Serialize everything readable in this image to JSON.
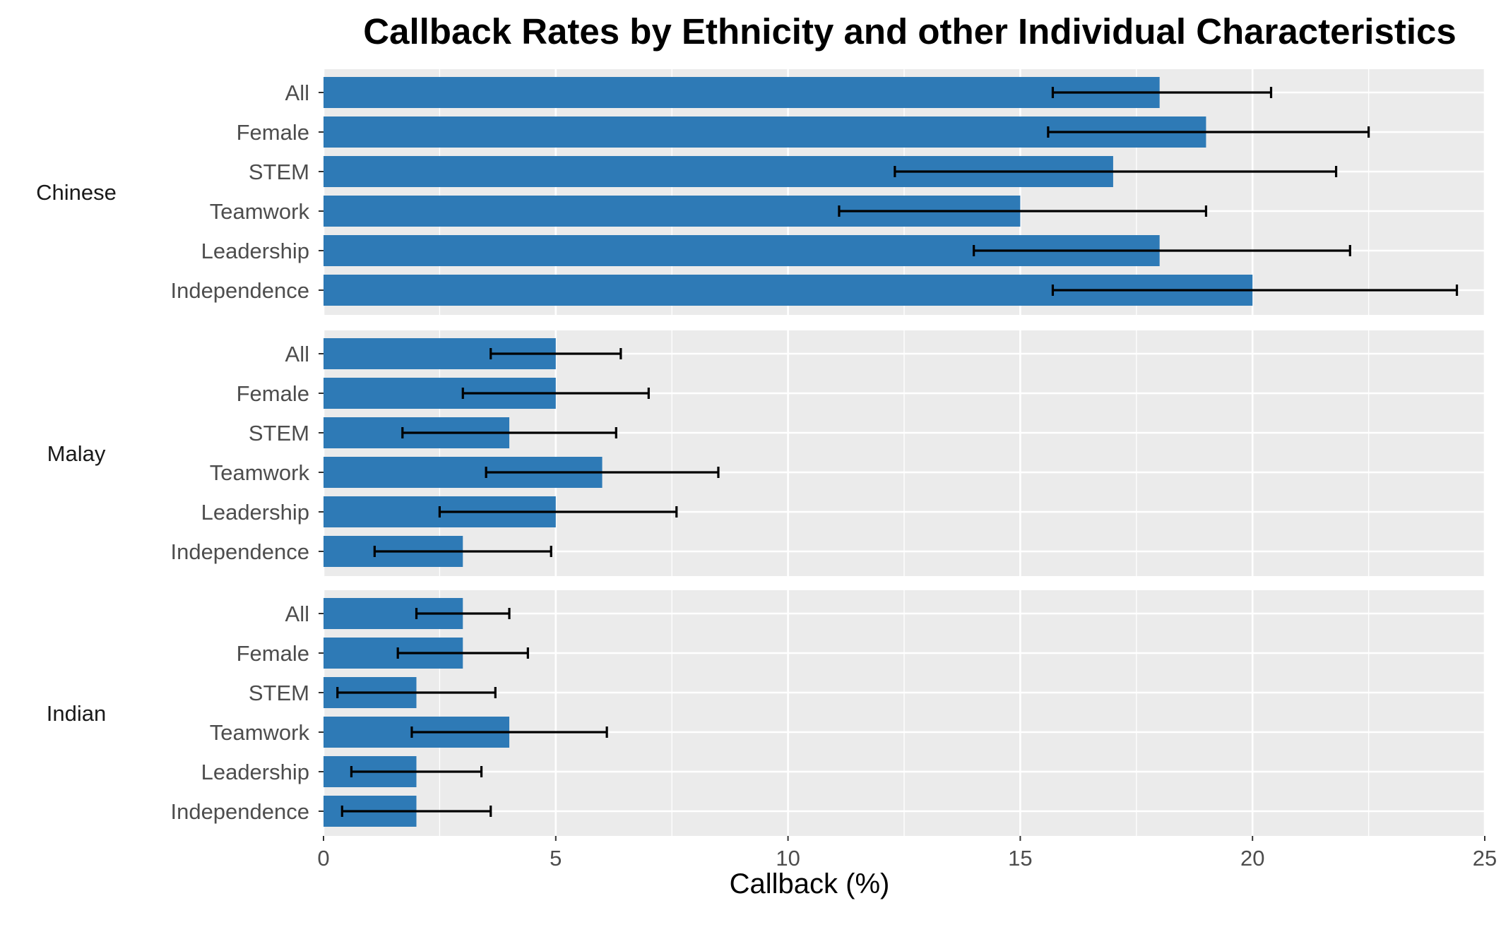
{
  "chart_data": {
    "type": "bar",
    "orientation": "horizontal",
    "title": "Callback Rates by Ethnicity and other Individual Characteristics",
    "xlabel": "Callback (%)",
    "ylabel": "",
    "xlim": [
      0,
      25
    ],
    "xticks": [
      0,
      5,
      10,
      15,
      20,
      25
    ],
    "grid": true,
    "categories": [
      "All",
      "Female",
      "STEM",
      "Teamwork",
      "Leadership",
      "Independence"
    ],
    "facets": [
      {
        "name": "Chinese",
        "values": [
          18,
          19,
          17,
          15,
          18,
          20
        ],
        "ci_low": [
          15.7,
          15.6,
          12.3,
          11.1,
          14.0,
          15.7
        ],
        "ci_high": [
          20.4,
          22.5,
          21.8,
          19.0,
          22.1,
          24.4
        ]
      },
      {
        "name": "Malay",
        "values": [
          5,
          5,
          4,
          6,
          5,
          3
        ],
        "ci_low": [
          3.6,
          3.0,
          1.7,
          3.5,
          2.5,
          1.1
        ],
        "ci_high": [
          6.4,
          7.0,
          6.3,
          8.5,
          7.6,
          4.9
        ]
      },
      {
        "name": "Indian",
        "values": [
          3,
          3,
          2,
          4,
          2,
          2
        ],
        "ci_low": [
          2.0,
          1.6,
          0.3,
          1.9,
          0.6,
          0.4
        ],
        "ci_high": [
          4.0,
          4.4,
          3.7,
          6.1,
          3.4,
          3.6
        ]
      }
    ],
    "colors": {
      "bar": "#2e7ab6",
      "panel_background": "#ebebeb",
      "grid": "#ffffff",
      "errorbar": "#000000"
    }
  }
}
